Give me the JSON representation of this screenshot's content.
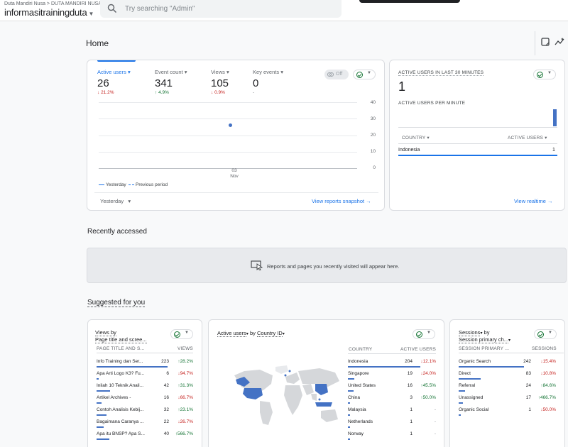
{
  "header": {
    "breadcrumb": "Duta Mandiri Nusa > DUTA MANDIRI NUSA",
    "property": "informasitrainingduta",
    "search_placeholder": "Try searching \"Admin\""
  },
  "page": {
    "title": "Home"
  },
  "overview": {
    "metrics": [
      {
        "label": "Active users",
        "value": "26",
        "change": "21.2%",
        "dir": "down"
      },
      {
        "label": "Event count",
        "value": "341",
        "change": "4.9%",
        "dir": "up"
      },
      {
        "label": "Views",
        "value": "105",
        "change": "0.9%",
        "dir": "down"
      },
      {
        "label": "Key events",
        "value": "0",
        "change": "-",
        "dir": "none"
      }
    ],
    "off_label": "Off",
    "y_ticks": [
      "40",
      "30",
      "20",
      "10",
      "0"
    ],
    "x_tick_day": "03",
    "x_tick_month": "Nov",
    "legend_current": "Yesterday",
    "legend_previous": "Previous period",
    "date_selector": "Yesterday",
    "link": "View reports snapshot"
  },
  "chart_data": {
    "type": "line",
    "x": [
      "03 Nov"
    ],
    "series": [
      {
        "name": "Yesterday",
        "values": [
          26
        ]
      }
    ],
    "ylim": [
      0,
      40
    ],
    "legend": [
      "Yesterday",
      "Previous period"
    ]
  },
  "realtime": {
    "title": "ACTIVE USERS IN LAST 30 MINUTES",
    "value": "1",
    "per_minute_label": "ACTIVE USERS PER MINUTE",
    "per_minute": [
      0,
      0,
      0,
      0,
      0,
      0,
      0,
      0,
      0,
      0,
      0,
      0,
      0,
      0,
      0,
      0,
      0,
      0,
      0,
      0,
      0,
      0,
      0,
      0,
      0,
      0,
      0,
      0,
      0,
      1
    ],
    "col_country": "COUNTRY",
    "col_users": "ACTIVE USERS",
    "rows": [
      {
        "country": "Indonesia",
        "users": "1"
      }
    ],
    "link": "View realtime"
  },
  "recent": {
    "title": "Recently accessed",
    "empty_text": "Reports and pages you recently visited will appear here."
  },
  "suggested": {
    "title": "Suggested for you",
    "views_card": {
      "title1": "Views by",
      "title2": "Page title and scree...",
      "col1": "PAGE TITLE AND S...",
      "col2": "VIEWS",
      "rows": [
        {
          "name": "Info Training dan Ser...",
          "value": "223",
          "change": "28.2%",
          "dir": "up",
          "share": 1.0
        },
        {
          "name": "Apa Arti Logo K3? Fu...",
          "value": "6",
          "change": "94.7%",
          "dir": "down",
          "share": 0.03
        },
        {
          "name": "Inilah 10 Teknik Anali...",
          "value": "42",
          "change": "31.3%",
          "dir": "up",
          "share": 0.19
        },
        {
          "name": "Artikel Archives -",
          "value": "16",
          "change": "66.7%",
          "dir": "down",
          "share": 0.07
        },
        {
          "name": "Contoh Analisis Kebij...",
          "value": "32",
          "change": "23.1%",
          "dir": "up",
          "share": 0.14
        },
        {
          "name": "Bagaimana Caranya ...",
          "value": "22",
          "change": "26.7%",
          "dir": "down",
          "share": 0.1
        },
        {
          "name": "Apa itu BNSP? Apa S...",
          "value": "40",
          "change": "566.7%",
          "dir": "up",
          "share": 0.18
        }
      ]
    },
    "country_card": {
      "title_metric": "Active users",
      "title_by": "by",
      "title_dim": "Country ID",
      "col1": "COUNTRY",
      "col2": "ACTIVE USERS",
      "rows": [
        {
          "name": "Indonesia",
          "value": "204",
          "change": "12.1%",
          "dir": "down",
          "share": 1.0
        },
        {
          "name": "Singapore",
          "value": "19",
          "change": "24.0%",
          "dir": "down",
          "share": 0.09
        },
        {
          "name": "United States",
          "value": "16",
          "change": "45.5%",
          "dir": "up",
          "share": 0.08
        },
        {
          "name": "China",
          "value": "3",
          "change": "50.0%",
          "dir": "up",
          "share": 0.02
        },
        {
          "name": "Malaysia",
          "value": "1",
          "change": "-",
          "dir": "none",
          "share": 0.005
        },
        {
          "name": "Netherlands",
          "value": "1",
          "change": "-",
          "dir": "none",
          "share": 0.005
        },
        {
          "name": "Norway",
          "value": "1",
          "change": "-",
          "dir": "none",
          "share": 0.005
        }
      ]
    },
    "sessions_card": {
      "title1": "Sessions",
      "title_by": "by",
      "title2": "Session primary ch...",
      "col1": "SESSION PRIMARY ...",
      "col2": "SESSIONS",
      "rows": [
        {
          "name": "Organic Search",
          "value": "242",
          "change": "15.4%",
          "dir": "down",
          "share": 1.0
        },
        {
          "name": "Direct",
          "value": "83",
          "change": "10.8%",
          "dir": "down",
          "share": 0.34
        },
        {
          "name": "Referral",
          "value": "24",
          "change": "84.6%",
          "dir": "up",
          "share": 0.1
        },
        {
          "name": "Unassigned",
          "value": "17",
          "change": "466.7%",
          "dir": "up",
          "share": 0.07
        },
        {
          "name": "Organic Social",
          "value": "1",
          "change": "50.0%",
          "dir": "down",
          "share": 0.004
        }
      ]
    }
  }
}
